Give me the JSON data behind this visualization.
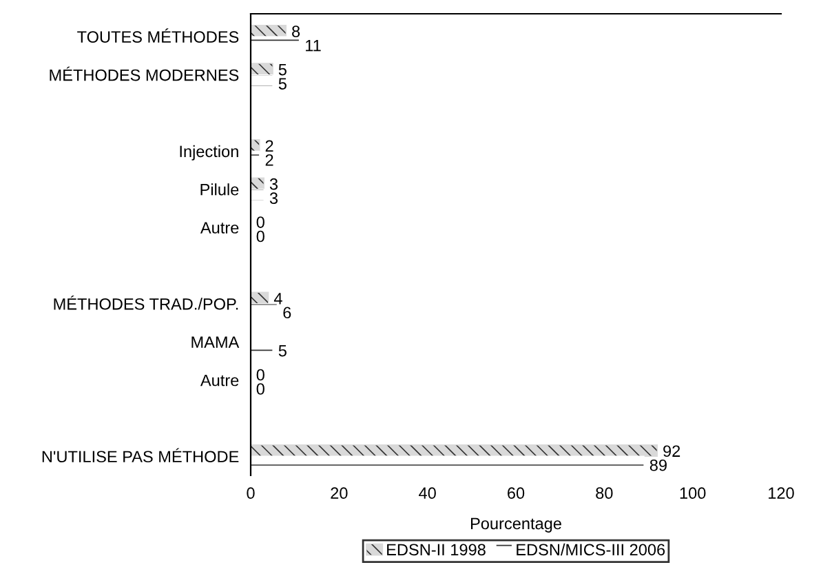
{
  "chart_data": {
    "type": "bar",
    "orientation": "horizontal",
    "xlabel": "Pourcentage",
    "categories": [
      "TOUTES MÉTHODES",
      "MÉTHODES MODERNES",
      null,
      "Injection",
      "Pilule",
      "Autre",
      null,
      "MÉTHODES TRAD./POP.",
      "MAMA",
      "Autre",
      null,
      "N'UTILISE PAS MÉTHODE"
    ],
    "series": [
      {
        "name": "EDSN-II 1998",
        "color": "#d9d9d9",
        "values": [
          8,
          5,
          null,
          2,
          3,
          0,
          null,
          4,
          null,
          0,
          null,
          92
        ]
      },
      {
        "name": "EDSN/MICS-III 2006",
        "color": "#ffffff",
        "values": [
          11,
          5,
          null,
          2,
          3,
          0,
          null,
          6,
          5,
          0,
          null,
          89
        ]
      }
    ],
    "xlim": [
      0,
      120
    ],
    "xticks": [
      0,
      20,
      40,
      60,
      80,
      100,
      120
    ],
    "grid": false,
    "legend": "bottom",
    "data_labels": true
  }
}
